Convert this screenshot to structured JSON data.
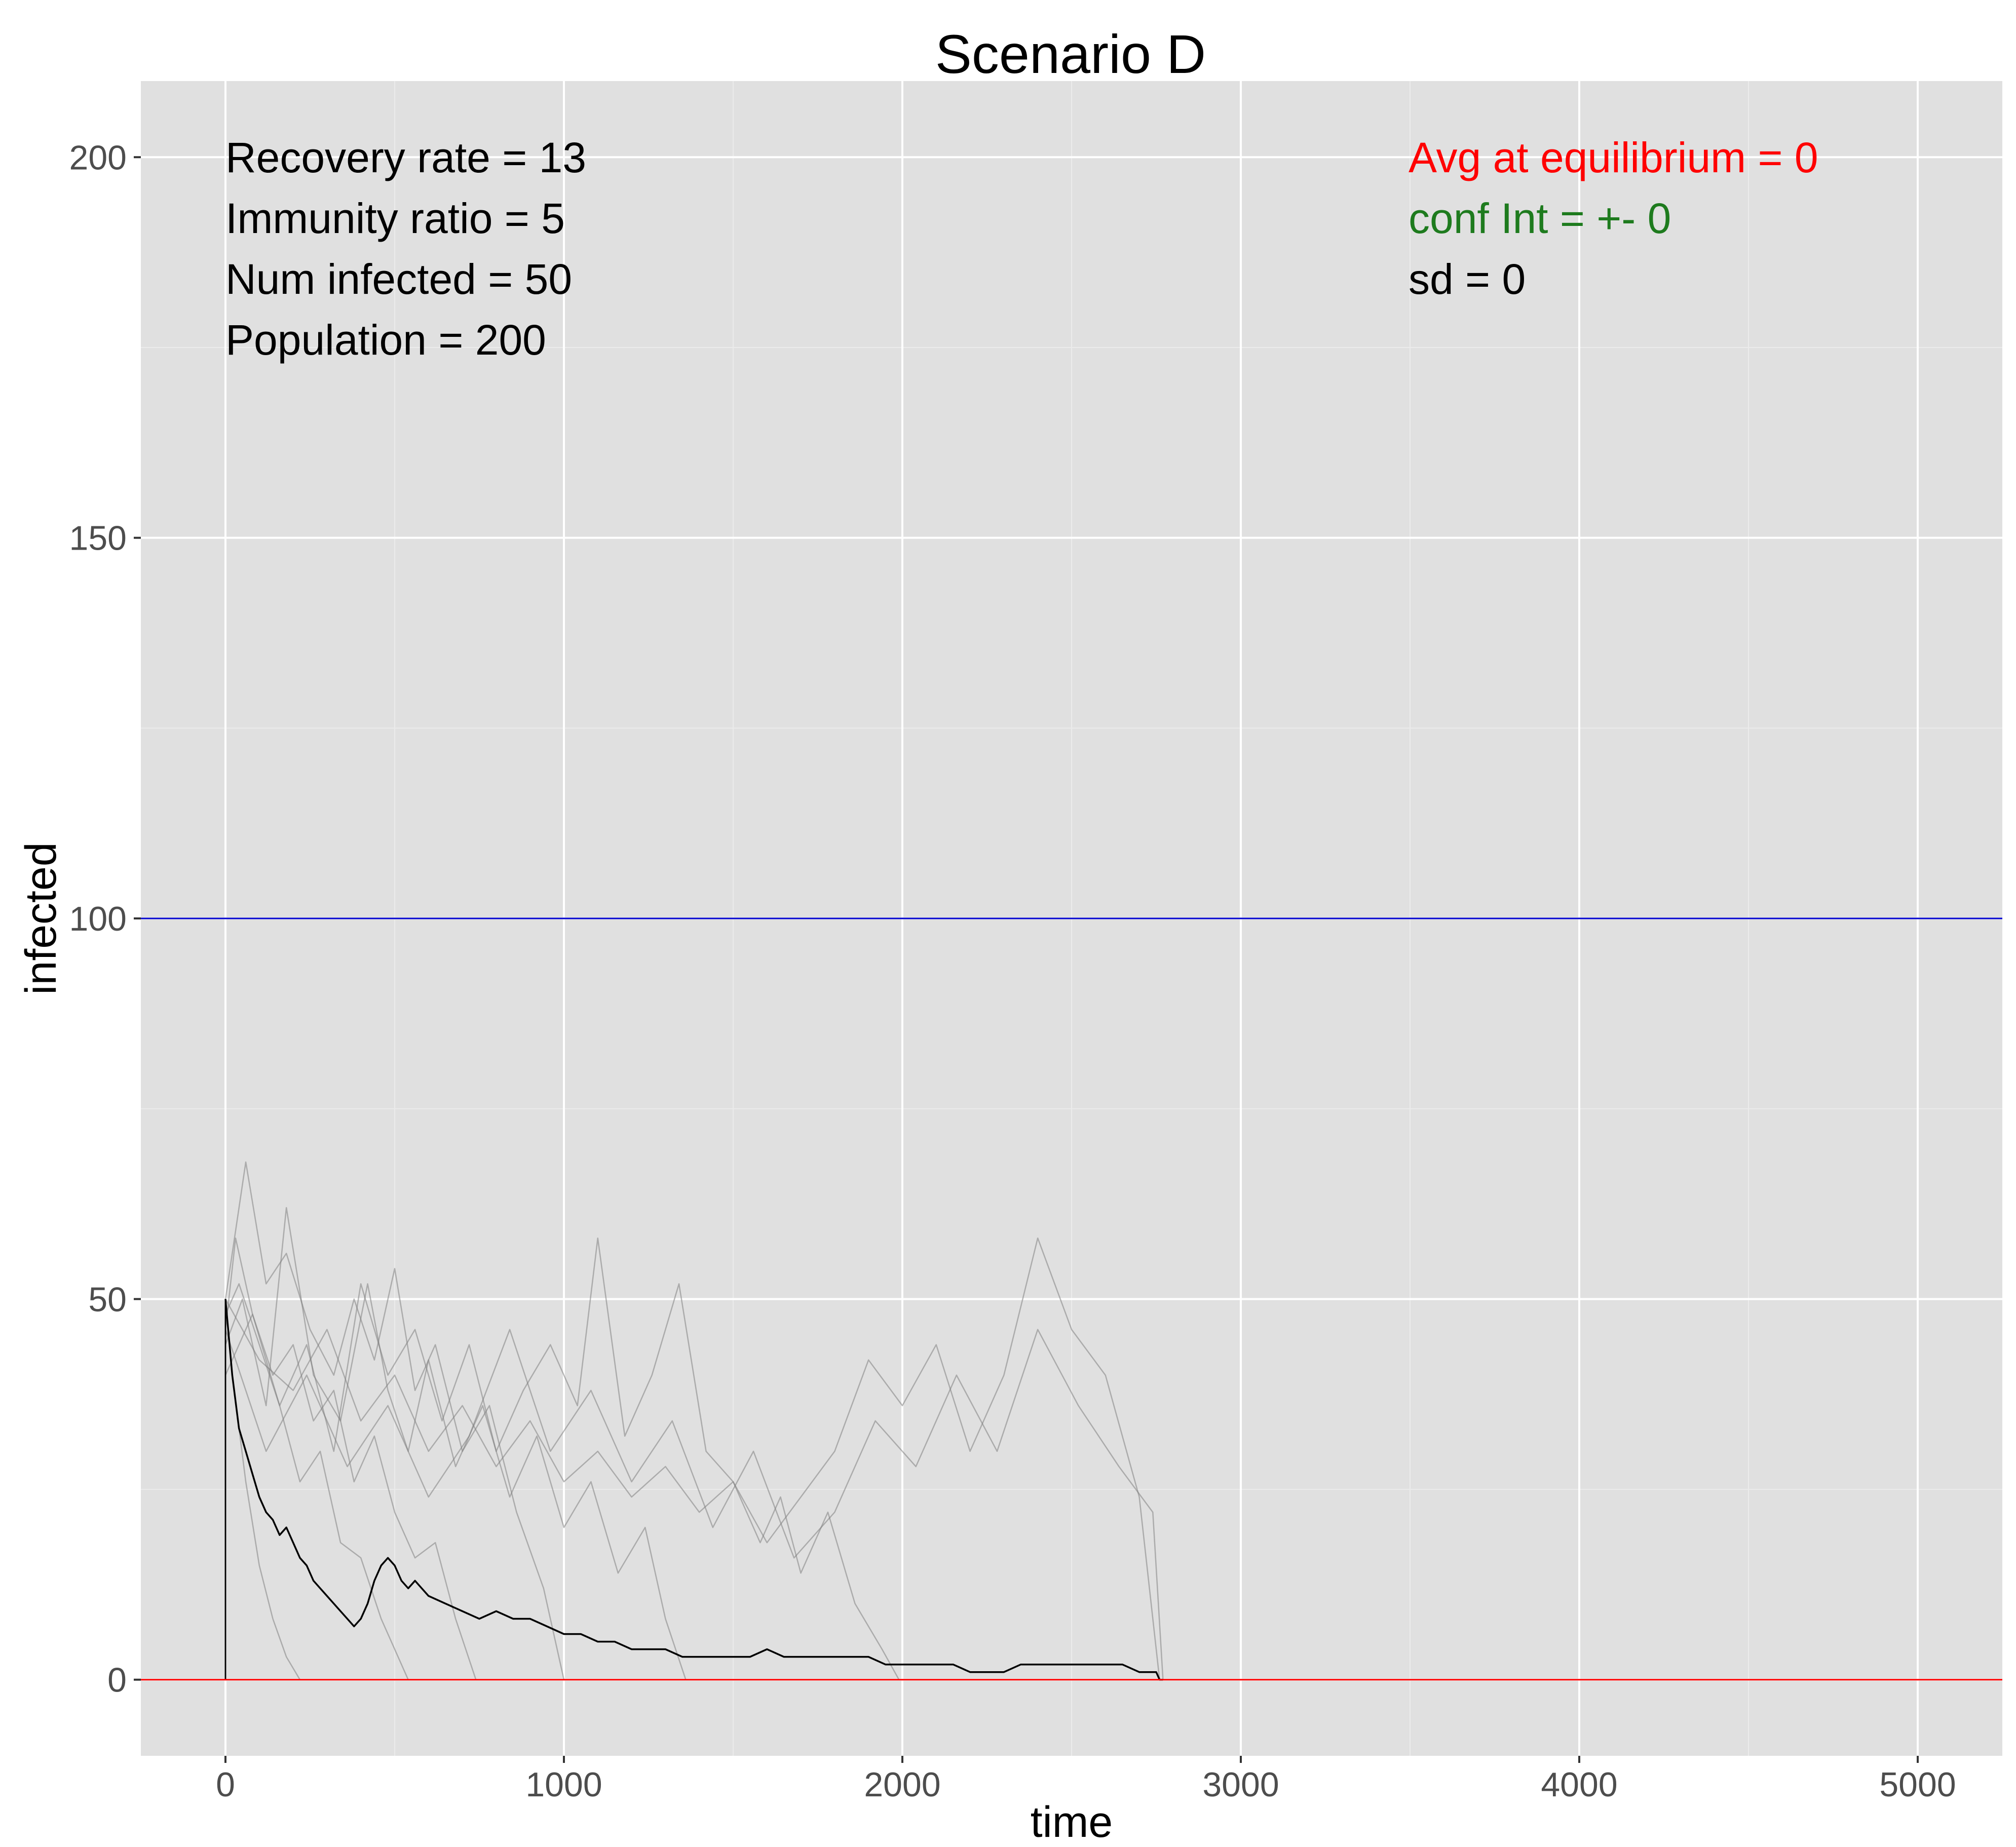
{
  "chart_data": {
    "type": "line",
    "title": "Scenario D",
    "xlabel": "time",
    "ylabel": "infected",
    "xlim": [
      -250,
      5250
    ],
    "ylim": [
      -10,
      210
    ],
    "x_ticks": [
      0,
      1000,
      2000,
      3000,
      4000,
      5000
    ],
    "y_ticks": [
      0,
      50,
      100,
      150,
      200
    ],
    "grid": true,
    "background": "#e0e0e0",
    "colors": {
      "gridMajor": "#ffffff",
      "gridMinor": "#ebebeb",
      "simulation": "#808080",
      "mean": "#000000",
      "refUpper": "#0000cd",
      "refLower": "#ff0000"
    },
    "hlines": [
      {
        "y": 100,
        "color": "#0000cd"
      },
      {
        "y": 0,
        "color": "#ff0000"
      }
    ],
    "vlines": [
      {
        "x": 0,
        "y_from": 0,
        "y_to": 50,
        "color": "#000000"
      }
    ],
    "annotations_left": [
      {
        "text": "Recovery rate = 13",
        "color": "#000000"
      },
      {
        "text": "Immunity ratio = 5",
        "color": "#000000"
      },
      {
        "text": "Num infected = 50",
        "color": "#000000"
      },
      {
        "text": "Population = 200",
        "color": "#000000"
      }
    ],
    "annotations_right": [
      {
        "text": "Avg at equilibrium = 0",
        "color": "#ff0000"
      },
      {
        "text": "conf Int = +- 0",
        "color": "#1e7b1e"
      },
      {
        "text": "sd = 0",
        "color": "#000000"
      }
    ],
    "series": [
      {
        "style": "simulation",
        "x": [
          0,
          20,
          60,
          100,
          140,
          180,
          220
        ],
        "y": [
          50,
          40,
          26,
          15,
          8,
          3,
          0
        ]
      },
      {
        "style": "simulation",
        "x": [
          0,
          40,
          100,
          160,
          220,
          280,
          340,
          400,
          460,
          540
        ],
        "y": [
          48,
          52,
          44,
          36,
          26,
          30,
          18,
          16,
          8,
          0
        ]
      },
      {
        "style": "simulation",
        "x": [
          0,
          30,
          80,
          140,
          200,
          260,
          320,
          380,
          440,
          500,
          560,
          620,
          680,
          740
        ],
        "y": [
          46,
          58,
          48,
          40,
          44,
          34,
          38,
          26,
          32,
          22,
          16,
          18,
          8,
          0
        ]
      },
      {
        "style": "simulation",
        "x": [
          0,
          60,
          120,
          180,
          250,
          320,
          380,
          440,
          500,
          560,
          620,
          700,
          780,
          860,
          940,
          1000
        ],
        "y": [
          50,
          68,
          52,
          56,
          46,
          40,
          50,
          42,
          54,
          38,
          44,
          30,
          36,
          22,
          12,
          0
        ]
      },
      {
        "style": "simulation",
        "x": [
          0,
          50,
          120,
          180,
          260,
          340,
          420,
          480,
          540,
          600,
          680,
          760,
          840,
          920,
          1000,
          1080,
          1160,
          1240,
          1300,
          1360
        ],
        "y": [
          44,
          50,
          36,
          62,
          40,
          34,
          52,
          38,
          30,
          42,
          28,
          36,
          24,
          32,
          20,
          26,
          14,
          20,
          8,
          0
        ]
      },
      {
        "style": "simulation",
        "x": [
          0,
          80,
          160,
          240,
          320,
          400,
          480,
          560,
          640,
          720,
          800,
          880,
          960,
          1040,
          1100,
          1180,
          1260,
          1340,
          1420,
          1500,
          1580,
          1640,
          1700,
          1780,
          1860,
          1940,
          1990
        ],
        "y": [
          40,
          48,
          36,
          44,
          30,
          52,
          40,
          46,
          34,
          44,
          30,
          38,
          44,
          36,
          58,
          32,
          40,
          52,
          30,
          26,
          18,
          24,
          14,
          22,
          10,
          4,
          0
        ]
      },
      {
        "style": "simulation",
        "x": [
          0,
          100,
          200,
          300,
          400,
          500,
          600,
          700,
          800,
          900,
          1000,
          1100,
          1200,
          1300,
          1400,
          1500,
          1600,
          1700,
          1800,
          1900,
          2000,
          2100,
          2200,
          2300,
          2400,
          2500,
          2600,
          2700,
          2760
        ],
        "y": [
          50,
          42,
          38,
          46,
          34,
          40,
          30,
          36,
          28,
          34,
          26,
          30,
          24,
          28,
          22,
          26,
          18,
          24,
          30,
          42,
          36,
          44,
          30,
          40,
          58,
          46,
          40,
          24,
          0
        ]
      },
      {
        "style": "simulation",
        "x": [
          0,
          120,
          240,
          360,
          480,
          600,
          720,
          840,
          960,
          1080,
          1200,
          1320,
          1440,
          1560,
          1680,
          1800,
          1920,
          2040,
          2160,
          2280,
          2400,
          2520,
          2640,
          2740,
          2770
        ],
        "y": [
          46,
          30,
          40,
          28,
          36,
          24,
          32,
          46,
          30,
          38,
          26,
          34,
          20,
          30,
          16,
          22,
          34,
          28,
          40,
          30,
          46,
          36,
          28,
          22,
          0
        ]
      },
      {
        "style": "mean",
        "x": [
          0,
          10,
          20,
          40,
          60,
          80,
          100,
          120,
          140,
          160,
          180,
          200,
          220,
          240,
          260,
          280,
          300,
          320,
          340,
          360,
          380,
          400,
          420,
          440,
          460,
          480,
          500,
          520,
          540,
          560,
          580,
          600,
          650,
          700,
          750,
          800,
          850,
          900,
          950,
          1000,
          1050,
          1100,
          1150,
          1200,
          1250,
          1300,
          1350,
          1400,
          1450,
          1500,
          1550,
          1600,
          1650,
          1700,
          1750,
          1800,
          1850,
          1900,
          1950,
          2000,
          2050,
          2100,
          2150,
          2200,
          2250,
          2300,
          2350,
          2400,
          2450,
          2500,
          2550,
          2600,
          2650,
          2700,
          2750,
          2760,
          2770
        ],
        "y": [
          50,
          45,
          40,
          33,
          30,
          27,
          24,
          22,
          21,
          19,
          20,
          18,
          16,
          15,
          13,
          12,
          11,
          10,
          9,
          8,
          7,
          8,
          10,
          13,
          15,
          16,
          15,
          13,
          12,
          13,
          12,
          11,
          10,
          9,
          8,
          9,
          8,
          8,
          7,
          6,
          6,
          5,
          5,
          4,
          4,
          4,
          3,
          3,
          3,
          3,
          3,
          4,
          3,
          3,
          3,
          3,
          3,
          3,
          2,
          2,
          2,
          2,
          2,
          1,
          1,
          1,
          2,
          2,
          2,
          2,
          2,
          2,
          2,
          1,
          1,
          0,
          0
        ]
      }
    ]
  }
}
